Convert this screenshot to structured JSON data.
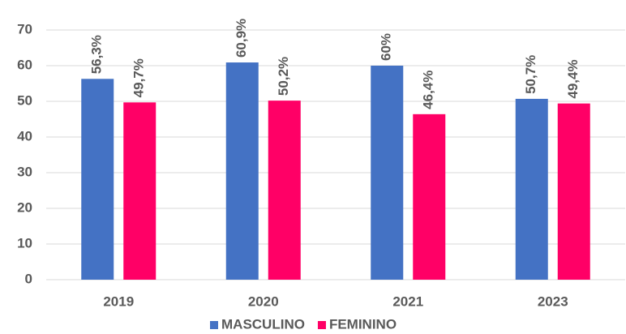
{
  "chart_data": {
    "type": "bar",
    "categories": [
      "2019",
      "2020",
      "2021",
      "2023"
    ],
    "series": [
      {
        "name": "MASCULINO",
        "color": "#4472c4",
        "values": [
          56.3,
          60.9,
          60,
          50.7
        ],
        "value_labels": [
          "56,3%",
          "60,9%",
          "60%",
          "50,7%"
        ]
      },
      {
        "name": "FEMININO",
        "color": "#ff0066",
        "values": [
          49.7,
          50.2,
          46.4,
          49.4
        ],
        "value_labels": [
          "49,7%",
          "50,2%",
          "46,4%",
          "49,4%"
        ]
      }
    ],
    "ylim": [
      0,
      70
    ],
    "yticks": [
      0,
      10,
      20,
      30,
      40,
      50,
      60,
      70
    ],
    "grid": true,
    "legend": "bottom"
  }
}
